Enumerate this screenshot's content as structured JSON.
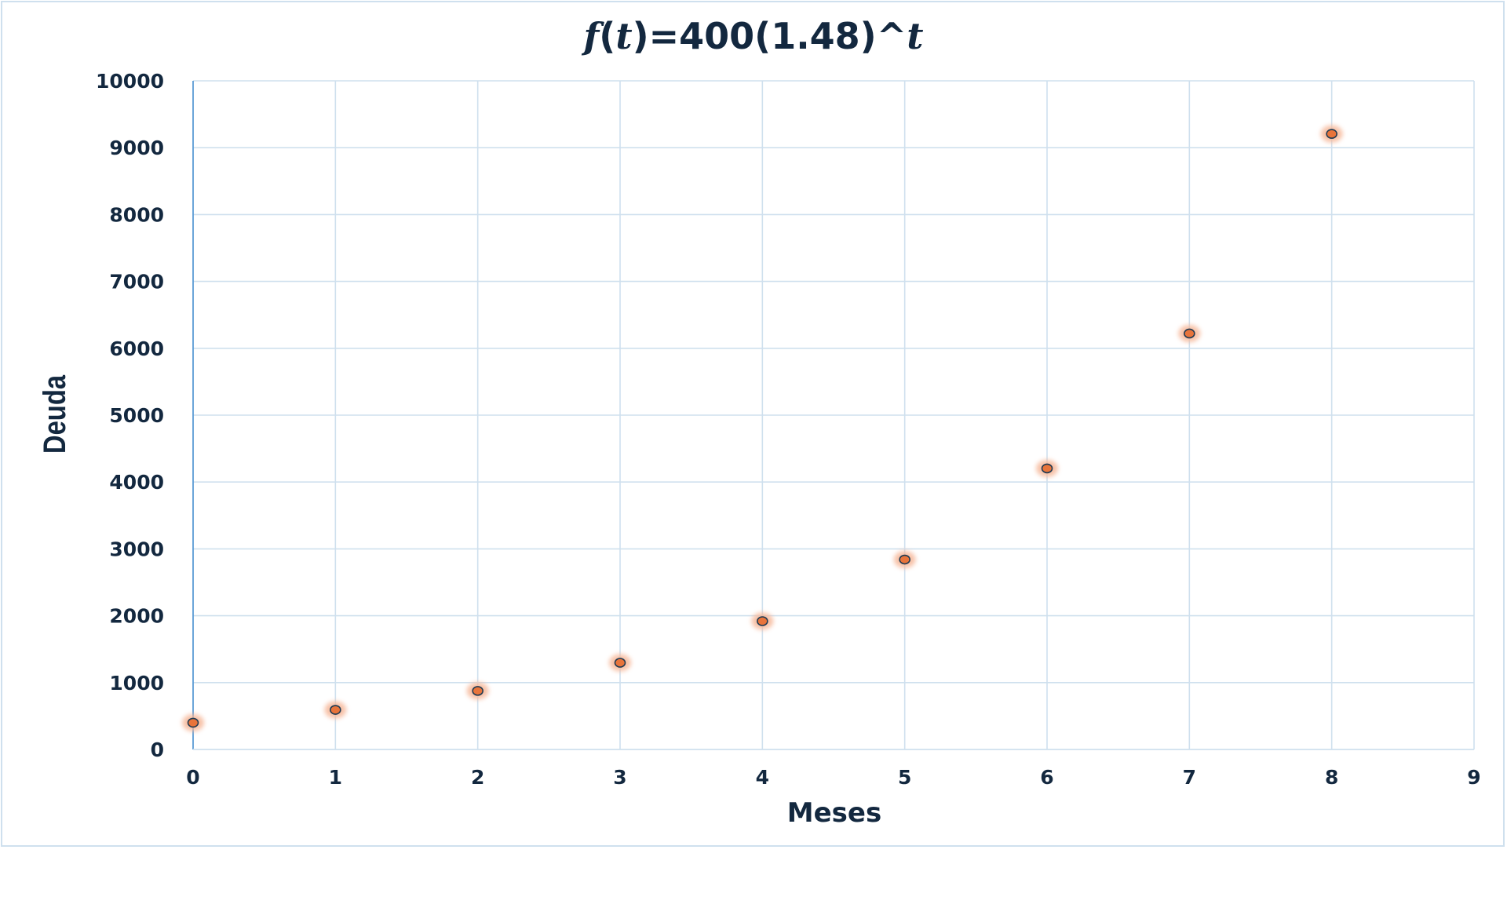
{
  "chart_data": {
    "type": "scatter",
    "title": {
      "f": "f",
      "open": "(",
      "t": "t",
      "mid": ")=400(1.48)^",
      "t2": "t"
    },
    "xlabel": "Meses",
    "ylabel": "Deuda",
    "xlim": [
      0,
      9
    ],
    "ylim": [
      0,
      10000
    ],
    "x_ticks": [
      "0",
      "1",
      "2",
      "3",
      "4",
      "5",
      "6",
      "7",
      "8",
      "9"
    ],
    "y_ticks": [
      "0",
      "1000",
      "2000",
      "3000",
      "4000",
      "5000",
      "6000",
      "7000",
      "8000",
      "9000",
      "10000"
    ],
    "grid": true,
    "legend": "none",
    "series": [
      {
        "x": [
          0,
          1,
          2,
          3,
          4,
          5,
          6,
          7,
          8
        ],
        "y": [
          400,
          592,
          876,
          1297,
          1919,
          2840,
          4203,
          6221,
          9207
        ]
      }
    ],
    "colors": {
      "marker_fill": "#e8743b",
      "marker_stroke": "#1f3a52",
      "marker_glow": "#f6b89a",
      "grid": "#cfe0ee",
      "axis": "#5b9bd5",
      "text": "#13283f"
    }
  }
}
